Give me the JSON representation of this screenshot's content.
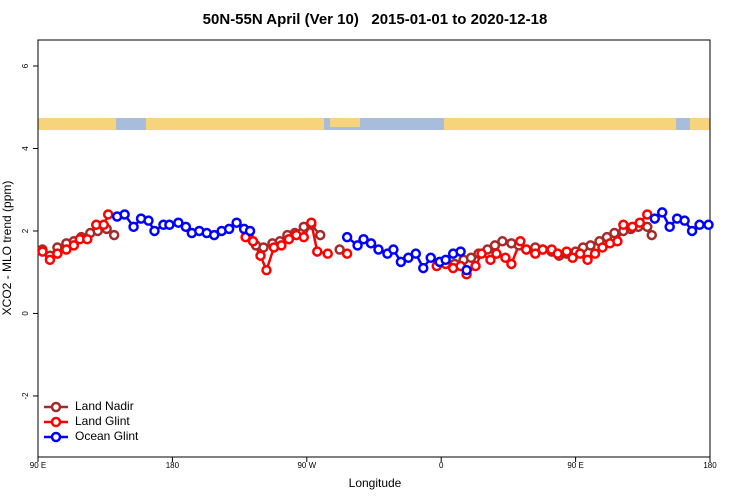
{
  "chart_data": {
    "type": "line",
    "title": "50N-55N April (Ver 10)   2015-01-01 to 2020-12-18",
    "xlabel": "Longitude",
    "ylabel": "XCO2 - MLO trend (ppm)",
    "xlim": [
      90,
      540
    ],
    "ylim": [
      -3.48,
      6.63
    ],
    "xticks": [
      {
        "value": 90,
        "label": "90 E"
      },
      180,
      {
        "value": 270,
        "label": "90 W"
      },
      {
        "value": 360,
        "label": "0"
      },
      {
        "value": 450,
        "label": "90 E"
      },
      {
        "value": 540,
        "label": "180"
      }
    ],
    "yticks": [
      -2,
      0,
      2,
      4,
      6
    ],
    "legend": "bottom-left",
    "series": [
      {
        "name": "Land Nadir",
        "color": "#a52a2a",
        "x": [
          93,
          98,
          103,
          109,
          114,
          119,
          125,
          130,
          136,
          141,
          null,
          231,
          236,
          241,
          247,
          252,
          257,
          262,
          268,
          273,
          279,
          null,
          292,
          null,
          358,
          363,
          369,
          375,
          380,
          385,
          391,
          396,
          401,
          407,
          412,
          417,
          423,
          428,
          434,
          439,
          444,
          450,
          455,
          460,
          466,
          471,
          476,
          482,
          487,
          492,
          498,
          501
        ],
        "values": [
          1.55,
          1.4,
          1.6,
          1.7,
          1.75,
          1.85,
          1.95,
          2.0,
          2.05,
          1.9,
          null,
          1.9,
          1.65,
          1.6,
          1.7,
          1.75,
          1.9,
          1.95,
          2.1,
          2.15,
          1.9,
          null,
          1.55,
          null,
          1.2,
          1.25,
          1.2,
          1.3,
          1.35,
          1.45,
          1.55,
          1.65,
          1.75,
          1.7,
          1.65,
          1.55,
          1.6,
          1.55,
          1.5,
          1.4,
          1.45,
          1.5,
          1.6,
          1.65,
          1.75,
          1.85,
          1.95,
          2.0,
          2.05,
          2.1,
          2.1,
          1.9
        ]
      },
      {
        "name": "Land Glint",
        "color": "#ff0000",
        "x": [
          93,
          98,
          103,
          109,
          114,
          118,
          123,
          129,
          134,
          137,
          null,
          229,
          234,
          239,
          243,
          248,
          253,
          258,
          263,
          268,
          273,
          277,
          284,
          null,
          297,
          null,
          357,
          363,
          368,
          373,
          377,
          383,
          387,
          393,
          397,
          403,
          407,
          413,
          417,
          423,
          428,
          434,
          438,
          444,
          448,
          453,
          458,
          463,
          468,
          473,
          478,
          482,
          488,
          493,
          498
        ],
        "values": [
          1.5,
          1.3,
          1.45,
          1.55,
          1.65,
          1.8,
          1.8,
          2.15,
          2.15,
          2.4,
          null,
          1.85,
          1.75,
          1.4,
          1.05,
          1.6,
          1.65,
          1.8,
          1.9,
          1.85,
          2.2,
          1.5,
          1.45,
          null,
          1.45,
          null,
          1.15,
          1.2,
          1.1,
          1.15,
          0.95,
          1.15,
          1.45,
          1.3,
          1.45,
          1.35,
          1.2,
          1.75,
          1.55,
          1.45,
          1.55,
          1.55,
          1.45,
          1.5,
          1.35,
          1.45,
          1.3,
          1.45,
          1.6,
          1.7,
          1.75,
          2.15,
          2.1,
          2.2,
          2.4
        ]
      },
      {
        "name": "Ocean Glint",
        "color": "#0000ff",
        "x": [
          143,
          148,
          154,
          159,
          164,
          168,
          174,
          178,
          184,
          189,
          193,
          198,
          203,
          208,
          213,
          218,
          223,
          228,
          232,
          null,
          297,
          304,
          308,
          313,
          318,
          324,
          328,
          333,
          338,
          343,
          348,
          353,
          359,
          363,
          368,
          373,
          377,
          null,
          503,
          508,
          513,
          518,
          523,
          528,
          533,
          539
        ],
        "values": [
          2.35,
          2.4,
          2.1,
          2.3,
          2.25,
          2.0,
          2.15,
          2.15,
          2.2,
          2.1,
          1.95,
          2.0,
          1.95,
          1.9,
          2.0,
          2.05,
          2.2,
          2.05,
          2.0,
          null,
          1.85,
          1.65,
          1.8,
          1.7,
          1.55,
          1.45,
          1.55,
          1.25,
          1.35,
          1.45,
          1.1,
          1.35,
          1.25,
          1.3,
          1.45,
          1.5,
          1.05,
          null,
          2.3,
          2.45,
          2.1,
          2.3,
          2.25,
          2.0,
          2.15,
          2.15
        ]
      }
    ]
  }
}
